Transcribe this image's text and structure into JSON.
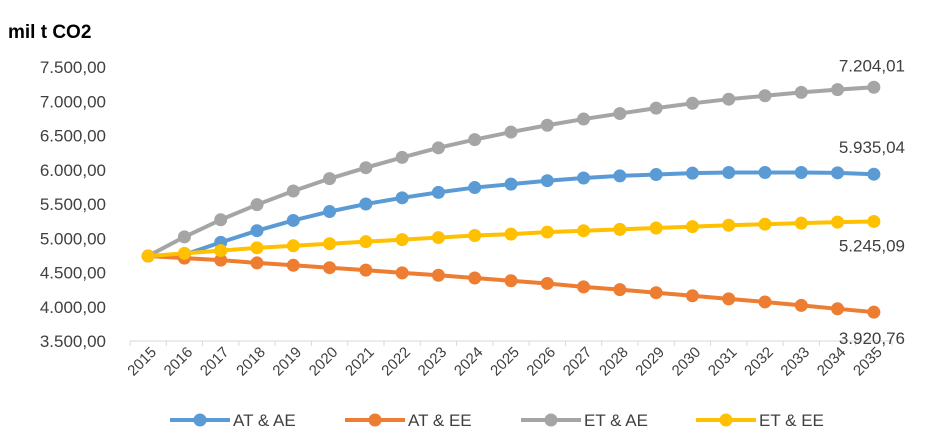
{
  "chart_data": {
    "type": "line",
    "title": "",
    "ylabel": "mil t CO2",
    "xlabel": "",
    "x": [
      "2015",
      "2016",
      "2017",
      "2018",
      "2019",
      "2020",
      "2021",
      "2022",
      "2023",
      "2024",
      "2025",
      "2026",
      "2027",
      "2028",
      "2029",
      "2030",
      "2031",
      "2032",
      "2033",
      "2034",
      "2035"
    ],
    "ylim": [
      3500,
      7500
    ],
    "yticks": [
      3500,
      4000,
      4500,
      5000,
      5500,
      6000,
      6500,
      7000,
      7500
    ],
    "ytick_labels": [
      "3.500,00",
      "4.000,00",
      "4.500,00",
      "5.000,00",
      "5.500,00",
      "6.000,00",
      "6.500,00",
      "7.000,00",
      "7.500,00"
    ],
    "grid": false,
    "legend_position": "bottom",
    "series": [
      {
        "name": "AT & AE",
        "color": "#5B9BD5",
        "values": [
          4740,
          4760,
          4940,
          5110,
          5260,
          5390,
          5500,
          5590,
          5670,
          5740,
          5790,
          5840,
          5880,
          5910,
          5930,
          5950,
          5960,
          5960,
          5960,
          5955,
          5935.04
        ],
        "end_label": "5.935,04"
      },
      {
        "name": "AT & EE",
        "color": "#ED7D31",
        "values": [
          4740,
          4710,
          4680,
          4640,
          4605,
          4570,
          4535,
          4495,
          4460,
          4420,
          4380,
          4340,
          4290,
          4250,
          4205,
          4160,
          4115,
          4070,
          4020,
          3970,
          3920.76
        ],
        "end_label": "3.920,76"
      },
      {
        "name": "ET & AE",
        "color": "#A5A5A5",
        "values": [
          4740,
          5020,
          5270,
          5490,
          5690,
          5870,
          6030,
          6180,
          6320,
          6440,
          6550,
          6650,
          6740,
          6820,
          6900,
          6970,
          7030,
          7080,
          7130,
          7170,
          7204.01
        ],
        "end_label": "7.204,01"
      },
      {
        "name": "ET & EE",
        "color": "#FFC000",
        "values": [
          4740,
          4780,
          4820,
          4860,
          4890,
          4920,
          4950,
          4980,
          5010,
          5040,
          5060,
          5090,
          5110,
          5130,
          5150,
          5170,
          5190,
          5205,
          5220,
          5235,
          5245.09
        ],
        "end_label": "5.245,09"
      }
    ]
  }
}
